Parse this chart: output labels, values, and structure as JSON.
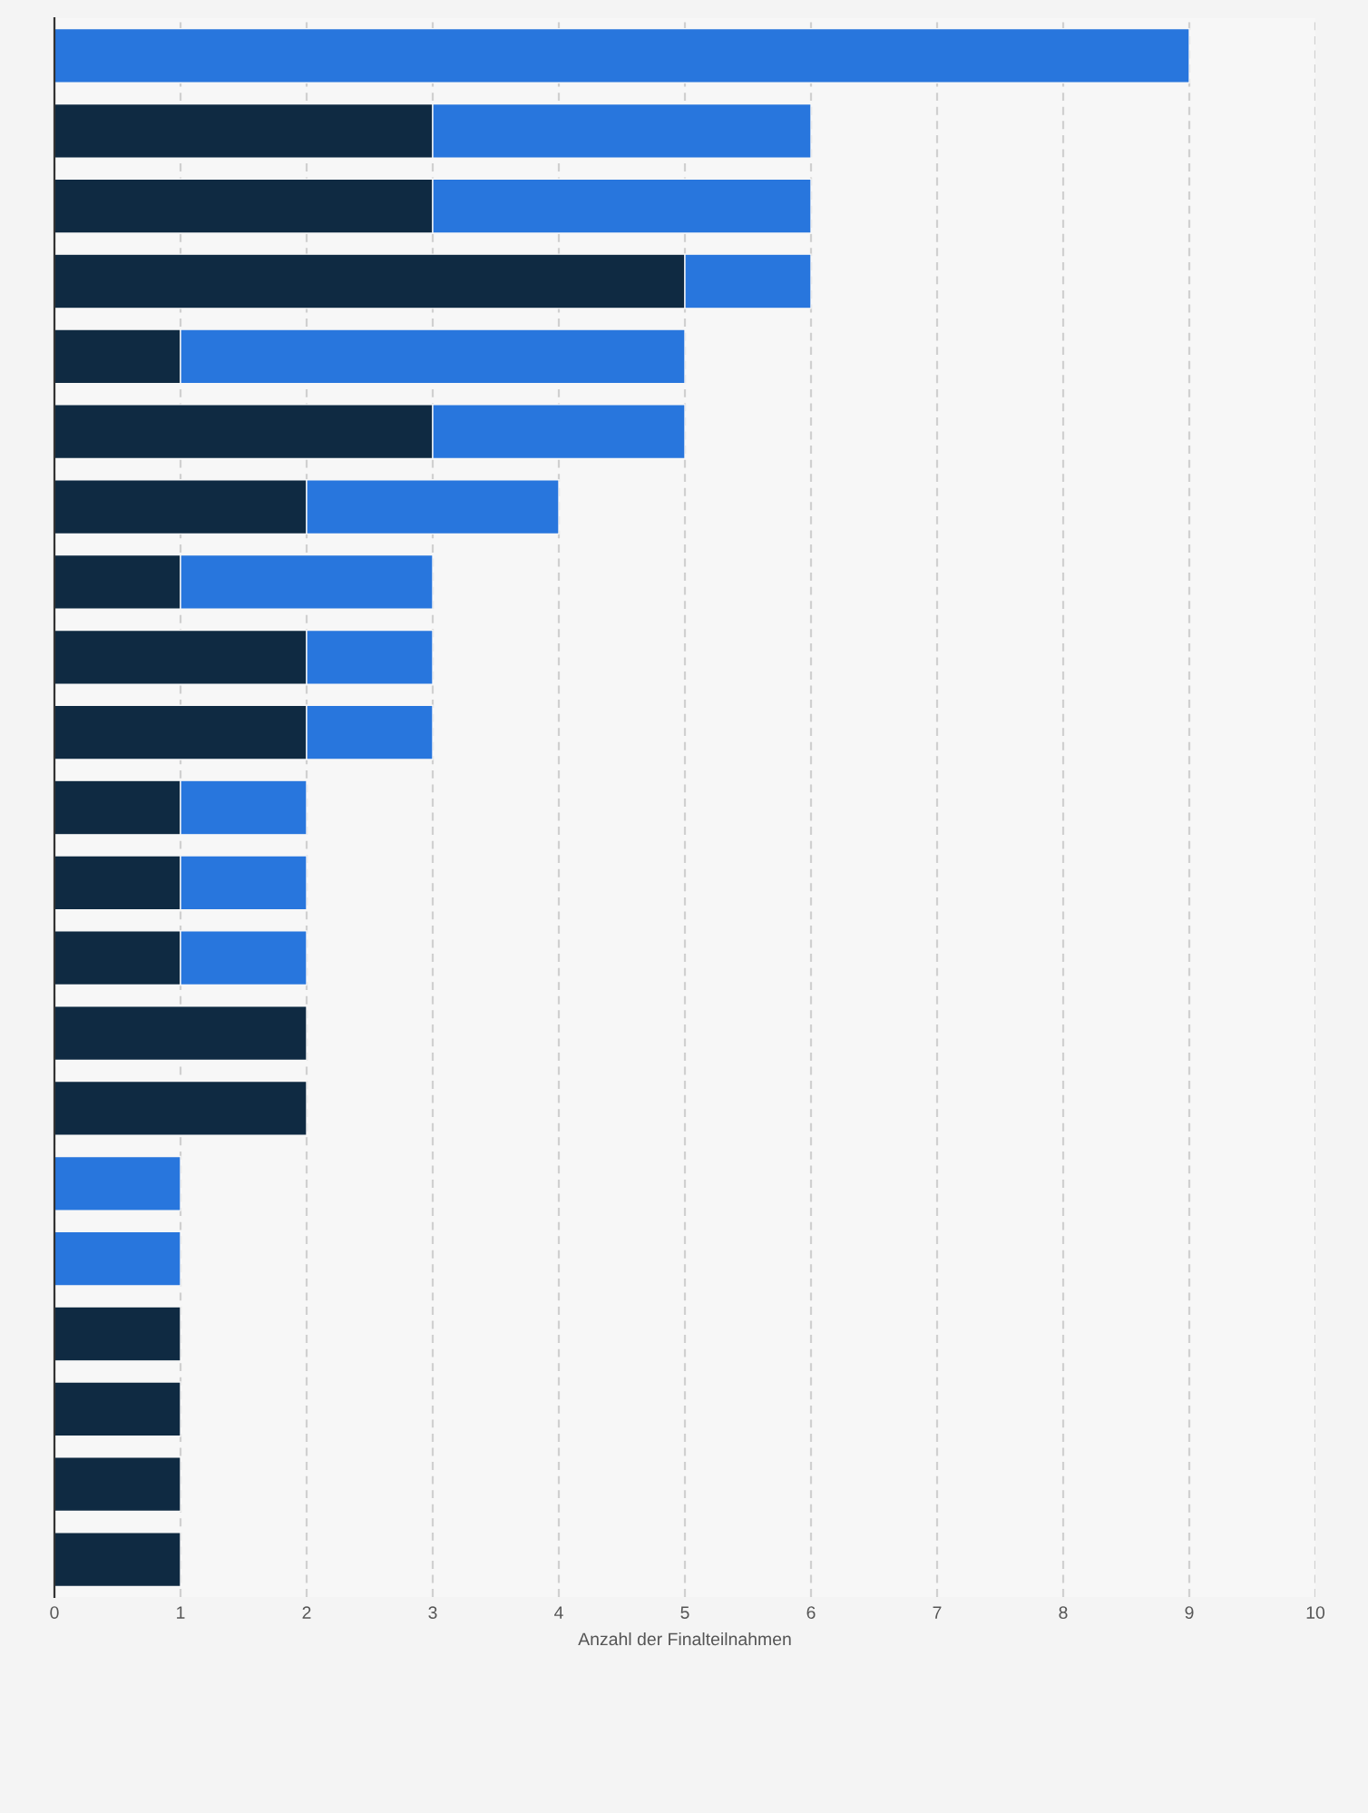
{
  "chart_data": {
    "type": "bar",
    "orientation": "horizontal",
    "stacked": true,
    "categories": [
      null,
      null,
      null,
      null,
      null,
      null,
      null,
      null,
      null,
      null,
      null,
      null,
      null,
      null,
      null,
      null,
      null,
      null,
      null,
      null,
      null
    ],
    "series": [
      {
        "color": "#0f2a42",
        "values": [
          null,
          3,
          3,
          5,
          1,
          3,
          2,
          1,
          2,
          2,
          1,
          1,
          1,
          2,
          2,
          null,
          null,
          1,
          1,
          1,
          1
        ]
      },
      {
        "color": "#2876dd",
        "values": [
          9,
          3,
          3,
          1,
          4,
          2,
          2,
          2,
          1,
          1,
          1,
          1,
          1,
          null,
          null,
          1,
          1,
          null,
          null,
          null,
          null
        ]
      }
    ],
    "xlabel": "Anzahl der Finalteilnahmen",
    "xlim": [
      0,
      10
    ],
    "xticks": [
      0,
      1,
      2,
      3,
      4,
      5,
      6,
      7,
      8,
      9,
      10
    ],
    "grid": "x",
    "tick_labels": "x"
  }
}
